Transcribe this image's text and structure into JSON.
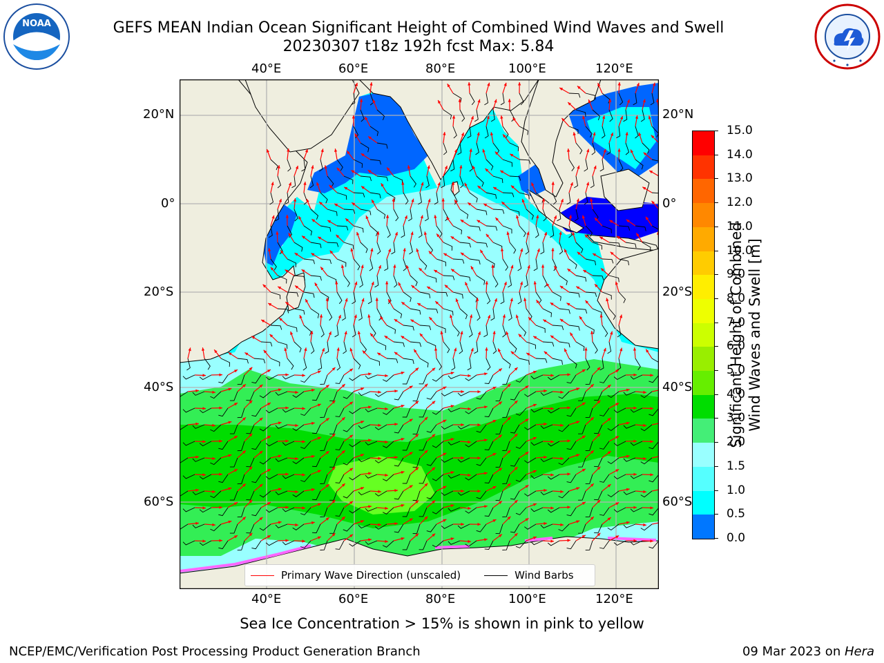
{
  "header": {
    "title_line1": "GEFS MEAN Indian Ocean Significant Height of Combined Wind Waves and Swell",
    "title_line2": "20230307 t18z 192h fcst   Max: 5.84"
  },
  "logos": {
    "left": {
      "text": "NOAA",
      "ring_text": "NATIONAL OCEANIC AND ATMOSPHERIC ADMINISTRATION · U.S. DEPARTMENT OF COMMERCE"
    },
    "right": {
      "ring_text": "NATIONAL WEATHER SERVICE"
    }
  },
  "map": {
    "lon_labels": [
      "40°E",
      "60°E",
      "80°E",
      "100°E",
      "120°E"
    ],
    "lat_labels": [
      "20°N",
      "0°",
      "20°S",
      "40°S",
      "60°S"
    ],
    "legend": [
      {
        "label": "Primary Wave Direction (unscaled)",
        "color": "#ff0000"
      },
      {
        "label": "Wind Barbs",
        "color": "#000000"
      }
    ],
    "colors": {
      "land": "#efeedf",
      "open_ocean_low": "#00ffff",
      "mid": "#99ffff",
      "band": "#33ee55",
      "band_strong": "#00dd00",
      "band_peak": "#66ff22",
      "coast_deep": "#0066ff",
      "sea_ice": "#ff66ff"
    }
  },
  "colorbar": {
    "label_line1": "Significant Height of Combined",
    "label_line2": "Wind Waves and Swell [m]",
    "ticks": [
      "15.0",
      "14.0",
      "13.0",
      "12.0",
      "11.0",
      "10.0",
      "9.0",
      "8.0",
      "7.0",
      "6.0",
      "5.0",
      "4.0",
      "3.0",
      "2.0",
      "1.5",
      "1.0",
      "0.5",
      "0.0"
    ],
    "colors": [
      "#ff0000",
      "#ff3300",
      "#ff6600",
      "#ff8800",
      "#ffaa00",
      "#ffcc00",
      "#ffee00",
      "#eeff00",
      "#ccff00",
      "#99ee00",
      "#66ee00",
      "#00dd00",
      "#44ee77",
      "#99ffff",
      "#55ffff",
      "#00ffff",
      "#0077ff",
      "#0000ff"
    ]
  },
  "footer": {
    "note": "Sea Ice Concentration > 15% is shown in pink to yellow",
    "left": "NCEP/EMC/Verification Post Processing Product Generation Branch",
    "right_prefix": "09 Mar 2023 on ",
    "right_host": "Hera"
  }
}
